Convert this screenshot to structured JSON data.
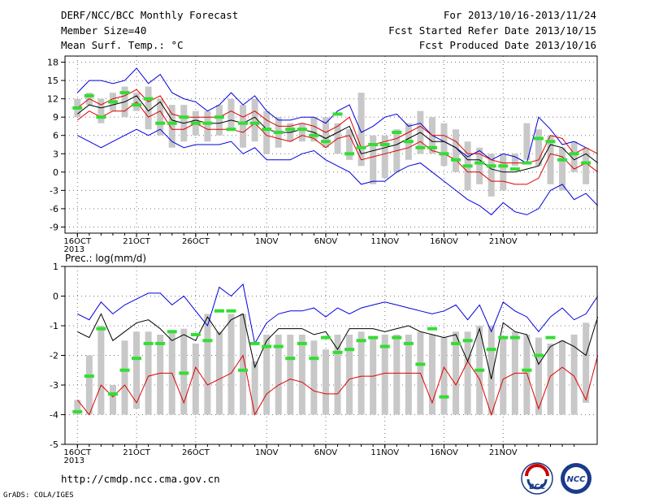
{
  "header": {
    "title": "DERF/NCC/BCC Monthly Forecast",
    "member": "Member Size=40",
    "variable": "Mean Surf. Temp.: °C",
    "period": "For 2013/10/16-2013/11/24",
    "start": "Fcst Started Refer Date 2013/10/15",
    "produced": "Fcst Produced Date 2013/10/16"
  },
  "footer": {
    "url": "http://cmdp.ncc.cma.gov.cn",
    "grads": "GrADS: COLA/IGES",
    "logo1": "BCC",
    "logo2": "NCC"
  },
  "chart_data": [
    {
      "type": "line",
      "ylabel": "",
      "ylim": [
        -10,
        19
      ],
      "yticks": [
        -9,
        -6,
        -3,
        0,
        3,
        6,
        9,
        12,
        15,
        18
      ],
      "xtick_labels": [
        "16OCT",
        "21OCT",
        "26OCT",
        "1NOV",
        "6NOV",
        "11NOV",
        "16NOV",
        "21NOV"
      ],
      "xtick_days": [
        1,
        6,
        11,
        17,
        22,
        27,
        32,
        37
      ],
      "year_label": "2013",
      "days": 40,
      "box_low": [
        9,
        11,
        8,
        10,
        9,
        10,
        7,
        6,
        4,
        5,
        6,
        5,
        6,
        7,
        4,
        5,
        3,
        4,
        5,
        5,
        5,
        4,
        3,
        2,
        1,
        -2,
        -1,
        0,
        2,
        3,
        3,
        1,
        0,
        -3,
        -2,
        -4,
        -3,
        1,
        2,
        1,
        -2,
        -3,
        0,
        -2,
        -5
      ],
      "box_high": [
        12,
        13,
        12,
        13,
        14,
        13,
        14,
        12,
        11,
        11,
        10,
        10,
        11,
        12,
        11,
        12,
        10,
        9,
        8,
        8,
        9,
        9,
        8,
        7,
        13,
        6,
        6,
        7,
        8,
        10,
        9,
        8,
        7,
        5,
        4,
        3,
        3,
        3,
        8,
        7,
        6,
        4,
        5,
        4
      ],
      "upper_blue": [
        13,
        15,
        15,
        14.5,
        15,
        17,
        14.5,
        16,
        13,
        12,
        11.5,
        10,
        11,
        13,
        11,
        12.5,
        10,
        8.5,
        8.5,
        9,
        9,
        8,
        10,
        11,
        6.5,
        7.5,
        9,
        9.5,
        7.5,
        8,
        6,
        5,
        4,
        2.5,
        3.5,
        2,
        3,
        2.5,
        1.5,
        9,
        7,
        4.5,
        5,
        4
      ],
      "upper_red": [
        10.5,
        12,
        11,
        12,
        12.5,
        13.5,
        11.5,
        12.5,
        9.5,
        9,
        9,
        9,
        9,
        10,
        9,
        10,
        8.5,
        7.5,
        7.5,
        8,
        7.5,
        6.5,
        7.5,
        9,
        4,
        4.5,
        5,
        5.5,
        6.5,
        7.5,
        6,
        6,
        5,
        3,
        3,
        2,
        1.5,
        1.5,
        1.5,
        2,
        6,
        5.5,
        3,
        4,
        3
      ],
      "ens_mean": [
        9.5,
        11,
        10.5,
        11,
        11.5,
        12.5,
        10,
        11.5,
        8.5,
        8,
        8.5,
        8,
        8,
        8.5,
        8,
        9,
        7,
        6.5,
        6.5,
        7,
        6.5,
        5.5,
        6.5,
        7.5,
        3,
        3.5,
        4,
        4.5,
        5.5,
        6.5,
        5,
        5,
        4,
        2,
        2,
        0.5,
        0,
        0,
        0.5,
        1,
        4.5,
        4,
        2,
        3,
        1.5
      ],
      "lower_red": [
        8.5,
        10,
        9,
        10,
        10,
        11.5,
        9,
        10,
        7,
        7,
        8,
        7,
        7,
        7,
        6.5,
        8,
        6,
        5.5,
        5,
        6,
        5.5,
        4,
        5.5,
        6,
        2,
        2.5,
        3,
        3.5,
        4,
        5,
        3.5,
        3,
        2,
        0,
        0,
        -1.5,
        -1.5,
        -2,
        -2,
        -1,
        3,
        2.5,
        0.5,
        1.5,
        0
      ],
      "lower_blue": [
        6,
        5,
        4,
        5,
        6,
        7,
        6,
        7,
        5,
        4,
        4.5,
        4.5,
        4.5,
        5,
        3,
        4,
        2,
        2,
        2,
        3,
        3.5,
        2,
        1,
        0,
        -2,
        -1.5,
        -1.5,
        0,
        1,
        1.5,
        0,
        -1.5,
        -3,
        -4.5,
        -5.5,
        -7,
        -5,
        -6.5,
        -7,
        -6,
        -3,
        -2,
        -4.5,
        -3.5,
        -5.5
      ],
      "green_marks": [
        10.5,
        12.5,
        9,
        11.5,
        13,
        11,
        12,
        8,
        8,
        9,
        8,
        8,
        9,
        7,
        8,
        8,
        7,
        6.5,
        7,
        7,
        6,
        5,
        9.5,
        3,
        4,
        4.5,
        4.5,
        6.5,
        5,
        4,
        4,
        3,
        2,
        1,
        1.5,
        1,
        1,
        0.5,
        1.5,
        5.5,
        5,
        2,
        3,
        1.5
      ]
    },
    {
      "type": "line",
      "ylabel": "Prec.: log(mm/d)",
      "ylim": [
        -5,
        1
      ],
      "yticks": [
        -5,
        -4,
        -3,
        -2,
        -1,
        0,
        1
      ],
      "xtick_labels": [
        "16OCT",
        "21OCT",
        "26OCT",
        "1NOV",
        "6NOV",
        "11NOV",
        "16NOV",
        "21NOV"
      ],
      "xtick_days": [
        1,
        6,
        11,
        17,
        22,
        27,
        32,
        37
      ],
      "year_label": "2013",
      "days": 40,
      "box_low": [
        -4,
        -4,
        -4,
        -4,
        -4,
        -3.8,
        -4,
        -4,
        -4,
        -4,
        -4,
        -4,
        -4,
        -4,
        -4,
        -4,
        -4,
        -4,
        -4,
        -4,
        -4,
        -4,
        -4,
        -4,
        -4,
        -4,
        -4,
        -4,
        -4,
        -4,
        -4,
        -4,
        -4,
        -4,
        -4,
        -4,
        -4,
        -4,
        -4,
        -4,
        -4,
        -4,
        -4,
        -3.6,
        -3.9
      ],
      "box_high": [
        -3.5,
        -2,
        -1,
        -3,
        -1.5,
        -1.2,
        -1.2,
        -1.3,
        -1.2,
        -1.1,
        -1.6,
        -0.6,
        -1.2,
        -0.6,
        -0.6,
        -2.2,
        -1.3,
        -1.3,
        -1.3,
        -1.3,
        -1.5,
        -1.8,
        -1.3,
        -1.3,
        -1.2,
        -1.4,
        -1.3,
        -1.3,
        -1.3,
        -1.2,
        -1.3,
        -1.4,
        -1.2,
        -1.2,
        -1,
        -1,
        -1.4,
        -1.2,
        -1.3,
        -1.4,
        -1.6,
        -1.5,
        -1.3,
        -0.9
      ],
      "upper_blue": [
        -0.6,
        -0.8,
        -0.2,
        -0.6,
        -0.3,
        -0.1,
        0.1,
        0.1,
        -0.3,
        0,
        -0.5,
        -1,
        0.3,
        0,
        0.4,
        -1.6,
        -0.9,
        -0.6,
        -0.5,
        -0.5,
        -0.4,
        -0.7,
        -0.4,
        -0.6,
        -0.4,
        -0.3,
        -0.2,
        -0.3,
        -0.4,
        -0.5,
        -0.6,
        -0.5,
        -0.3,
        -0.8,
        -0.3,
        -1.2,
        -0.2,
        -0.5,
        -0.7,
        -1.2,
        -0.7,
        -0.4,
        -0.8,
        -0.6,
        0
      ],
      "ens_mean": [
        -1.2,
        -1.4,
        -0.6,
        -1.5,
        -1.2,
        -0.9,
        -0.8,
        -1.1,
        -1.5,
        -1.3,
        -1.5,
        -0.7,
        -1.3,
        -0.8,
        -0.6,
        -2.4,
        -1.5,
        -1.1,
        -1.1,
        -1.1,
        -1.3,
        -1.2,
        -1.8,
        -1.1,
        -1.1,
        -1.1,
        -1.2,
        -1.1,
        -1.0,
        -1.2,
        -1.3,
        -1.4,
        -1.3,
        -2.2,
        -1.1,
        -2.8,
        -0.9,
        -1.2,
        -1.3,
        -2.3,
        -1.7,
        -1.5,
        -1.7,
        -2.0,
        -0.7
      ],
      "lower_red": [
        -3.5,
        -4,
        -3,
        -3.4,
        -3,
        -3.6,
        -2.7,
        -2.6,
        -2.6,
        -3.6,
        -2.4,
        -3,
        -2.8,
        -2.6,
        -2.0,
        -4,
        -3.3,
        -3,
        -2.8,
        -2.9,
        -3.2,
        -3.3,
        -3.3,
        -2.8,
        -2.7,
        -2.7,
        -2.6,
        -2.6,
        -2.6,
        -2.6,
        -3.6,
        -2.4,
        -3,
        -2.2,
        -2.8,
        -4,
        -2.8,
        -2.6,
        -2.6,
        -3.8,
        -2.7,
        -2.4,
        -2.7,
        -3.5,
        -2.0
      ],
      "green_marks": [
        -3.9,
        -2.7,
        -1.1,
        -3.3,
        -2.5,
        -2.1,
        -1.6,
        -1.6,
        -1.2,
        -2.6,
        -1.3,
        -1.5,
        -0.5,
        -0.5,
        -2.5,
        -1.6,
        -1.7,
        -1.7,
        -2.1,
        -1.6,
        -2.1,
        -1.4,
        -1.9,
        -1.8,
        -1.5,
        -1.4,
        -1.7,
        -1.4,
        -1.6,
        -2.3,
        -1.1,
        -3.4,
        -1.6,
        -1.5,
        -2.5,
        -1.8,
        -1.4,
        -1.4,
        -2.5,
        -2.0,
        -1.4
      ]
    }
  ]
}
